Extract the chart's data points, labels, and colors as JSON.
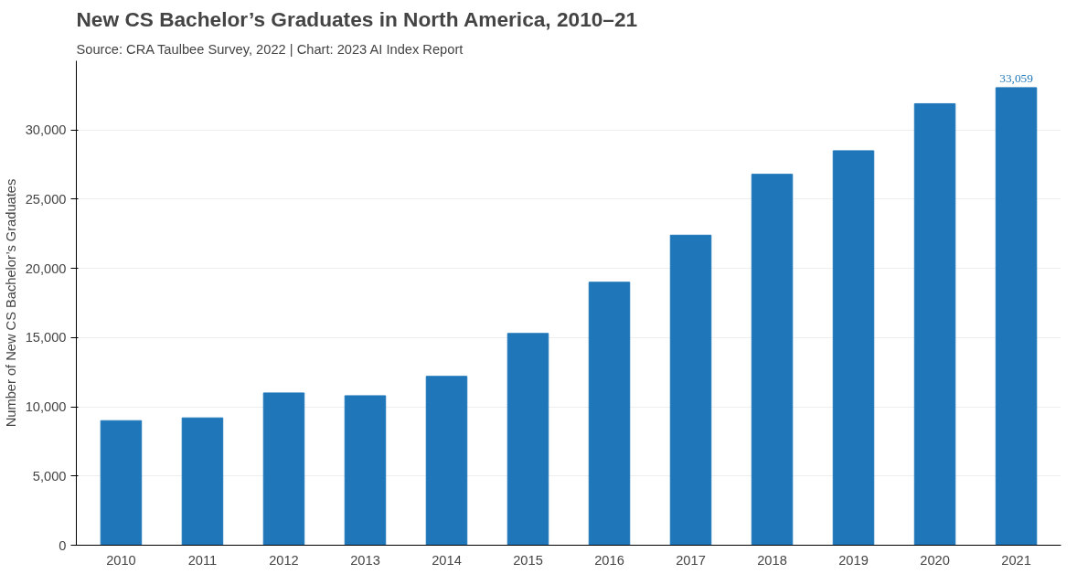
{
  "chart_data": {
    "type": "bar",
    "title": "New CS Bachelor’s Graduates in North America, 2010–21",
    "subtitle": "Source: CRA Taulbee Survey, 2022 | Chart: 2023 AI Index Report",
    "ylabel": "Number of New CS Bachelor’s Graduates",
    "categories": [
      "2010",
      "2011",
      "2012",
      "2013",
      "2014",
      "2015",
      "2016",
      "2017",
      "2018",
      "2019",
      "2020",
      "2021"
    ],
    "values": [
      9000,
      9200,
      11000,
      10800,
      12200,
      15300,
      19000,
      22400,
      26800,
      28500,
      31900,
      33059
    ],
    "value_labels": [
      null,
      null,
      null,
      null,
      null,
      null,
      null,
      null,
      null,
      null,
      null,
      "33,059"
    ],
    "color": "#1f77b9",
    "ylim": [
      0,
      35000
    ],
    "yticks": [
      0,
      {
        "value": 5000,
        "label": "5,000"
      },
      {
        "value": 10000,
        "label": "10,000"
      },
      {
        "value": 15000,
        "label": "15,000"
      },
      {
        "value": 20000,
        "label": "20,000"
      },
      {
        "value": 25000,
        "label": "25,000"
      },
      {
        "value": 30000,
        "label": "30,000"
      }
    ],
    "grid": "y"
  }
}
